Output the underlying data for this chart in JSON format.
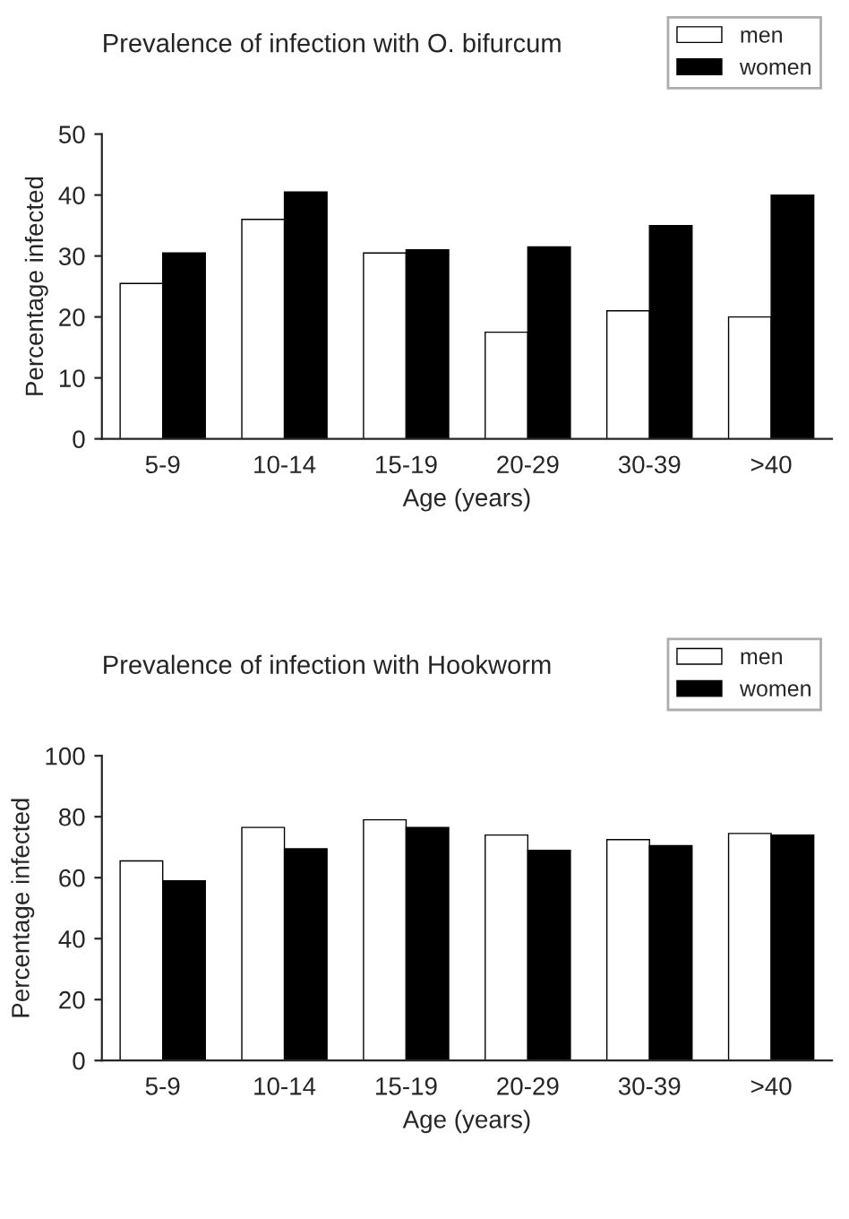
{
  "chart_data": [
    {
      "type": "bar",
      "title": "Prevalence of infection with O. bifurcum",
      "xlabel": "Age (years)",
      "ylabel": "Percentage infected",
      "categories": [
        "5-9",
        "10-14",
        "15-19",
        "20-29",
        "30-39",
        ">40"
      ],
      "series": [
        {
          "name": "men",
          "color": "#ffffff",
          "values": [
            25.5,
            36,
            30.5,
            17.5,
            21,
            20
          ]
        },
        {
          "name": "women",
          "color": "#000000",
          "values": [
            30.5,
            40.5,
            31,
            31.5,
            35,
            40
          ]
        }
      ],
      "ylim": [
        0,
        50
      ],
      "yticks": [
        0,
        10,
        20,
        30,
        40,
        50
      ],
      "grid": false,
      "legend": "top right"
    },
    {
      "type": "bar",
      "title": "Prevalence of infection with Hookworm",
      "xlabel": "Age (years)",
      "ylabel": "Percentage infected",
      "categories": [
        "5-9",
        "10-14",
        "15-19",
        "20-29",
        "30-39",
        ">40"
      ],
      "series": [
        {
          "name": "men",
          "color": "#ffffff",
          "values": [
            65.5,
            76.5,
            79,
            74,
            72.5,
            74.5
          ]
        },
        {
          "name": "women",
          "color": "#000000",
          "values": [
            59,
            69.5,
            76.5,
            69,
            70.5,
            74
          ]
        }
      ],
      "ylim": [
        0,
        100
      ],
      "yticks": [
        0,
        20,
        40,
        60,
        80,
        100
      ],
      "grid": false,
      "legend": "top right"
    }
  ]
}
